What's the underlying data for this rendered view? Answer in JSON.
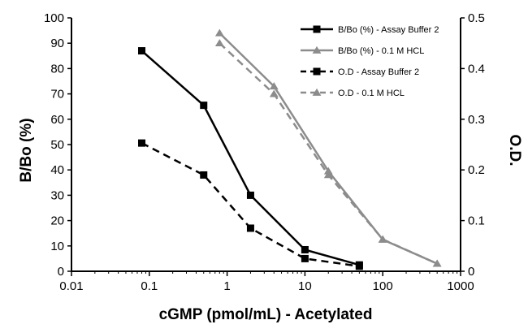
{
  "chart_data": {
    "type": "line",
    "xlabel": "cGMP (pmol/mL) - Acetylated",
    "ylabel": "B/Bo (%)",
    "y2label": "O.D.",
    "xscale": "log",
    "xlim": [
      0.01,
      1000
    ],
    "ylim": [
      0,
      100
    ],
    "y2lim": [
      0,
      0.5
    ],
    "x_ticks": [
      "0.01",
      "0.1",
      "1",
      "10",
      "100",
      "1000"
    ],
    "y_ticks": [
      "0",
      "10",
      "20",
      "30",
      "40",
      "50",
      "60",
      "70",
      "80",
      "90",
      "100"
    ],
    "y2_ticks": [
      "0",
      "0.1",
      "0.2",
      "0.3",
      "0.4",
      "0.5"
    ],
    "legend_position": "top-right",
    "grid": false,
    "series": [
      {
        "name": "B/Bo (%) - Assay Buffer 2",
        "axis": "left",
        "color": "#000000",
        "dash": "solid",
        "marker": "square",
        "x": [
          0.08,
          0.5,
          2,
          10,
          50
        ],
        "y": [
          87,
          65.5,
          30,
          8.5,
          2.5
        ]
      },
      {
        "name": "B/Bo (%) - 0.1 M HCL",
        "axis": "left",
        "color": "#8c8c8c",
        "dash": "solid",
        "marker": "triangle",
        "x": [
          0.8,
          4,
          20,
          100,
          500
        ],
        "y": [
          94,
          73,
          39.5,
          12.5,
          3
        ]
      },
      {
        "name": "O.D - Assay Buffer 2",
        "axis": "right",
        "color": "#000000",
        "dash": "dashed",
        "marker": "square",
        "x": [
          0.08,
          0.5,
          2,
          10,
          50
        ],
        "y": [
          0.253,
          0.19,
          0.085,
          0.025,
          0.01
        ]
      },
      {
        "name": "O.D - 0.1 M HCL",
        "axis": "right",
        "color": "#8c8c8c",
        "dash": "dashed",
        "marker": "triangle",
        "x": [
          0.8,
          4,
          20,
          100,
          500
        ],
        "y": [
          0.45,
          0.35,
          0.19,
          0.063,
          0.015
        ]
      }
    ]
  }
}
